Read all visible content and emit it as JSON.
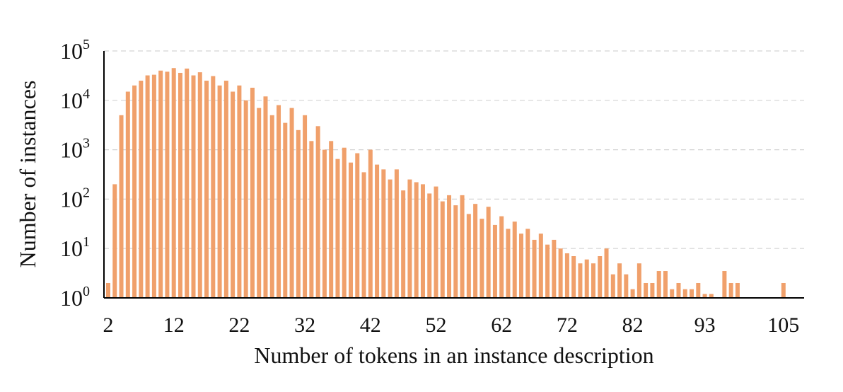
{
  "chart_data": {
    "type": "bar",
    "xlabel": "Number of tokens in an instance description",
    "ylabel": "Number of instances",
    "y_scale": "log",
    "ylim": [
      1,
      100000
    ],
    "grid": "horizontal-dashed",
    "bar_color": "#F0A06B",
    "x_tick_labels": [
      "2",
      "12",
      "22",
      "32",
      "42",
      "52",
      "62",
      "72",
      "82",
      "93",
      "105"
    ],
    "y_tick_labels": [
      {
        "base": "10",
        "exp": "0"
      },
      {
        "base": "10",
        "exp": "1"
      },
      {
        "base": "10",
        "exp": "2"
      },
      {
        "base": "10",
        "exp": "3"
      },
      {
        "base": "10",
        "exp": "4"
      },
      {
        "base": "10",
        "exp": "5"
      }
    ],
    "x": [
      2,
      3,
      4,
      5,
      6,
      7,
      8,
      9,
      10,
      11,
      12,
      13,
      14,
      15,
      16,
      17,
      18,
      19,
      20,
      21,
      22,
      23,
      24,
      25,
      26,
      27,
      28,
      29,
      30,
      31,
      32,
      33,
      34,
      35,
      36,
      37,
      38,
      39,
      40,
      41,
      42,
      43,
      44,
      45,
      46,
      47,
      48,
      49,
      50,
      51,
      52,
      53,
      54,
      55,
      56,
      57,
      58,
      59,
      60,
      61,
      62,
      63,
      64,
      65,
      66,
      67,
      68,
      69,
      70,
      71,
      72,
      73,
      74,
      75,
      76,
      77,
      78,
      79,
      80,
      81,
      82,
      83,
      84,
      85,
      86,
      87,
      88,
      89,
      90,
      91,
      92,
      93,
      94,
      95,
      96,
      97,
      98,
      105
    ],
    "values": [
      2,
      200,
      5000,
      15000,
      20000,
      25000,
      32000,
      33000,
      40000,
      38000,
      45000,
      36000,
      44000,
      32000,
      37000,
      25000,
      31000,
      20000,
      25000,
      15000,
      20000,
      10000,
      18000,
      7000,
      12000,
      5000,
      8000,
      3500,
      7000,
      2500,
      5000,
      1500,
      3000,
      1000,
      1500,
      650,
      1100,
      550,
      850,
      350,
      1000,
      500,
      400,
      250,
      400,
      150,
      250,
      220,
      200,
      130,
      180,
      90,
      120,
      75,
      120,
      50,
      80,
      40,
      70,
      30,
      45,
      25,
      35,
      20,
      25,
      15,
      20,
      12,
      15,
      10,
      8,
      7,
      5,
      6,
      5,
      7,
      10,
      3,
      5,
      3,
      1.5,
      5,
      2,
      2,
      3.5,
      3.5,
      1.5,
      2,
      1.5,
      1.5,
      2,
      1.2,
      1.2,
      0,
      3.5,
      2,
      2,
      2
    ]
  }
}
